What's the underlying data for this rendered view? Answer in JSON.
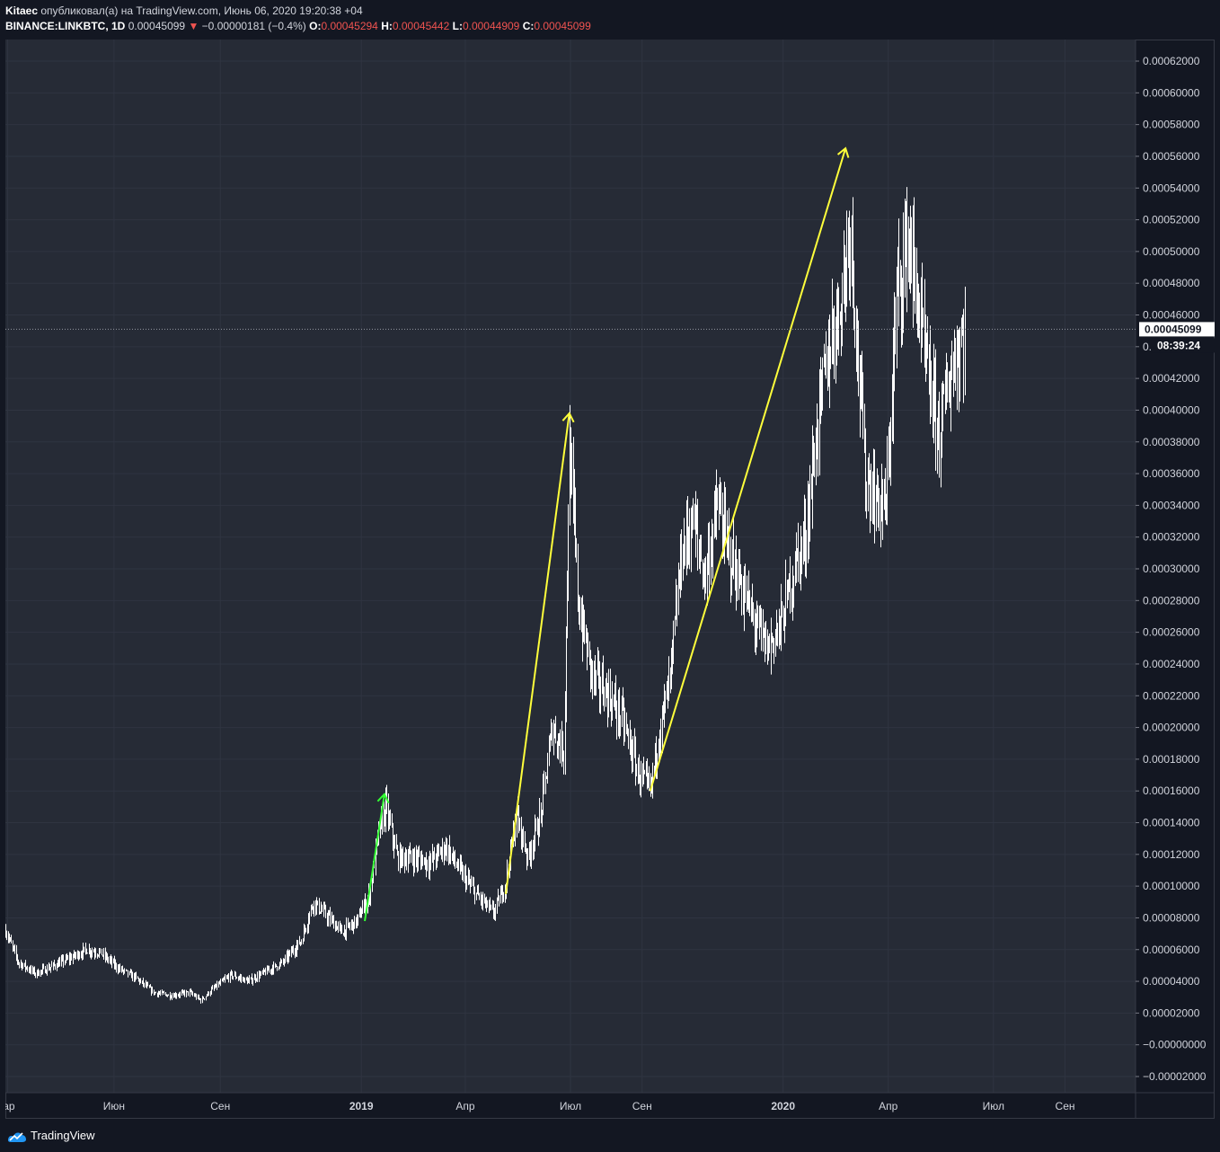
{
  "header": {
    "author": "Kitaec",
    "published_text": "опубликовал(а) на TradingView.com, Июнь 06, 2020 19:20:38 +04",
    "symbol": "BINANCE:LINKBTC, 1D",
    "last": "0.00045099",
    "change": "−0.00000181 (−0.4%)",
    "o_label": "O:",
    "o_value": "0.00045294",
    "h_label": "H:",
    "h_value": "0.00045442",
    "l_label": "L:",
    "l_value": "0.00044909",
    "c_label": "C:",
    "c_value": "0.00045099"
  },
  "footer": {
    "brand": "TradingView"
  },
  "colors": {
    "background": "#131722",
    "plot_background": "#262b36",
    "grid": "#2f3441",
    "bar": "#ffffff",
    "down": "#ef5350",
    "arrow_yellow": "#ffff3b",
    "arrow_green": "#33ff33"
  },
  "chart_data": {
    "type": "bar",
    "title": "BINANCE:LINKBTC, 1D",
    "xlabel": "",
    "ylabel": "",
    "ylim": [
      -2e-05,
      0.00062
    ],
    "grid": true,
    "y_ticks": [
      "0.00062000",
      "0.00060000",
      "0.00058000",
      "0.00056000",
      "0.00054000",
      "0.00052000",
      "0.00050000",
      "0.00048000",
      "0.00046000",
      "0.00044000",
      "0.00042000",
      "0.00040000",
      "0.00038000",
      "0.00036000",
      "0.00034000",
      "0.00032000",
      "0.00030000",
      "0.00028000",
      "0.00026000",
      "0.00024000",
      "0.00022000",
      "0.00020000",
      "0.00018000",
      "0.00016000",
      "0.00014000",
      "0.00012000",
      "0.00010000",
      "0.00008000",
      "0.00006000",
      "0.00004000",
      "0.00002000",
      "−0.00000000",
      "−0.00002000"
    ],
    "x_ticks": [
      {
        "label": "lар",
        "date": "2018-03-01",
        "bold": false
      },
      {
        "label": "Июн",
        "date": "2018-06-01",
        "bold": false
      },
      {
        "label": "Сен",
        "date": "2018-09-01",
        "bold": false
      },
      {
        "label": "2019",
        "date": "2019-01-01",
        "bold": true
      },
      {
        "label": "Апр",
        "date": "2019-04-01",
        "bold": false
      },
      {
        "label": "Июл",
        "date": "2019-07-01",
        "bold": false
      },
      {
        "label": "Сен",
        "date": "2019-09-01",
        "bold": false
      },
      {
        "label": "2020",
        "date": "2020-01-01",
        "bold": true
      },
      {
        "label": "Апр",
        "date": "2020-04-01",
        "bold": false
      },
      {
        "label": "Июл",
        "date": "2020-07-01",
        "bold": false
      },
      {
        "label": "Сен",
        "date": "2020-09-01",
        "bold": false
      }
    ],
    "x_range": [
      "2018-02-27",
      "2020-11-01"
    ],
    "last_price": "0.00045099",
    "countdown": "08:39:24",
    "series": [
      {
        "price_path": [
          [
            "2018-02-27",
            7.2e-05
          ],
          [
            "2018-03-10",
            5.2e-05
          ],
          [
            "2018-03-25",
            4.5e-05
          ],
          [
            "2018-04-10",
            5e-05
          ],
          [
            "2018-04-25",
            5.5e-05
          ],
          [
            "2018-05-08",
            6e-05
          ],
          [
            "2018-05-20",
            5.8e-05
          ],
          [
            "2018-06-05",
            4.8e-05
          ],
          [
            "2018-06-20",
            4.2e-05
          ],
          [
            "2018-07-05",
            3.3e-05
          ],
          [
            "2018-07-20",
            3.1e-05
          ],
          [
            "2018-08-05",
            3.3e-05
          ],
          [
            "2018-08-15",
            2.8e-05
          ],
          [
            "2018-08-25",
            3.5e-05
          ],
          [
            "2018-09-10",
            4.4e-05
          ],
          [
            "2018-09-25",
            4e-05
          ],
          [
            "2018-10-10",
            4.6e-05
          ],
          [
            "2018-10-25",
            5.2e-05
          ],
          [
            "2018-11-10",
            6.6e-05
          ],
          [
            "2018-11-20",
            9e-05
          ],
          [
            "2018-12-01",
            8.2e-05
          ],
          [
            "2018-12-15",
            7.1e-05
          ],
          [
            "2018-12-28",
            7.8e-05
          ],
          [
            "2019-01-08",
            9.5e-05
          ],
          [
            "2019-01-15",
            0.00013
          ],
          [
            "2019-01-22",
            0.00015
          ],
          [
            "2019-02-01",
            0.000118
          ],
          [
            "2019-02-15",
            0.000118
          ],
          [
            "2019-03-01",
            0.000115
          ],
          [
            "2019-03-15",
            0.000125
          ],
          [
            "2019-03-25",
            0.000112
          ],
          [
            "2019-04-10",
            9.5e-05
          ],
          [
            "2019-04-25",
            8.3e-05
          ],
          [
            "2019-05-05",
            0.0001
          ],
          [
            "2019-05-15",
            0.000145
          ],
          [
            "2019-05-25",
            0.000118
          ],
          [
            "2019-06-05",
            0.000145
          ],
          [
            "2019-06-15",
            0.0002
          ],
          [
            "2019-06-25",
            0.000185
          ],
          [
            "2019-06-30",
            0.000375
          ],
          [
            "2019-07-08",
            0.000275
          ],
          [
            "2019-07-20",
            0.000232
          ],
          [
            "2019-08-01",
            0.000222
          ],
          [
            "2019-08-15",
            0.000205
          ],
          [
            "2019-08-28",
            0.000172
          ],
          [
            "2019-09-08",
            0.00016
          ],
          [
            "2019-09-15",
            0.000195
          ],
          [
            "2019-09-25",
            0.00023
          ],
          [
            "2019-10-05",
            0.00031
          ],
          [
            "2019-10-15",
            0.00033
          ],
          [
            "2019-10-25",
            0.000295
          ],
          [
            "2019-11-05",
            0.00034
          ],
          [
            "2019-11-15",
            0.00031
          ],
          [
            "2019-11-25",
            0.00029
          ],
          [
            "2019-12-05",
            0.00027
          ],
          [
            "2019-12-18",
            0.00025
          ],
          [
            "2019-12-30",
            0.000265
          ],
          [
            "2020-01-10",
            0.0003
          ],
          [
            "2020-01-20",
            0.00032
          ],
          [
            "2020-02-01",
            0.0004
          ],
          [
            "2020-02-10",
            0.00044
          ],
          [
            "2020-02-20",
            0.00047
          ],
          [
            "2020-02-28",
            0.00052
          ],
          [
            "2020-03-05",
            0.00044
          ],
          [
            "2020-03-12",
            0.00036
          ],
          [
            "2020-03-20",
            0.000345
          ],
          [
            "2020-03-30",
            0.000338
          ],
          [
            "2020-04-08",
            0.00047
          ],
          [
            "2020-04-18",
            0.00051
          ],
          [
            "2020-04-25",
            0.000475
          ],
          [
            "2020-05-05",
            0.00042
          ],
          [
            "2020-05-15",
            0.000385
          ],
          [
            "2020-05-25",
            0.000425
          ],
          [
            "2020-06-06",
            0.000451
          ]
        ]
      }
    ],
    "annotations": [
      {
        "type": "arrow",
        "color": "green",
        "from": [
          "2019-01-04",
          7.8e-05
        ],
        "to": [
          "2019-01-21",
          0.000158
        ]
      },
      {
        "type": "arrow",
        "color": "yellow",
        "from": [
          "2019-05-06",
          9.5e-05
        ],
        "to": [
          "2019-06-30",
          0.000398
        ]
      },
      {
        "type": "arrow",
        "color": "yellow",
        "from": [
          "2019-09-08",
          0.00016
        ],
        "to": [
          "2020-02-24",
          0.000565
        ]
      }
    ]
  }
}
